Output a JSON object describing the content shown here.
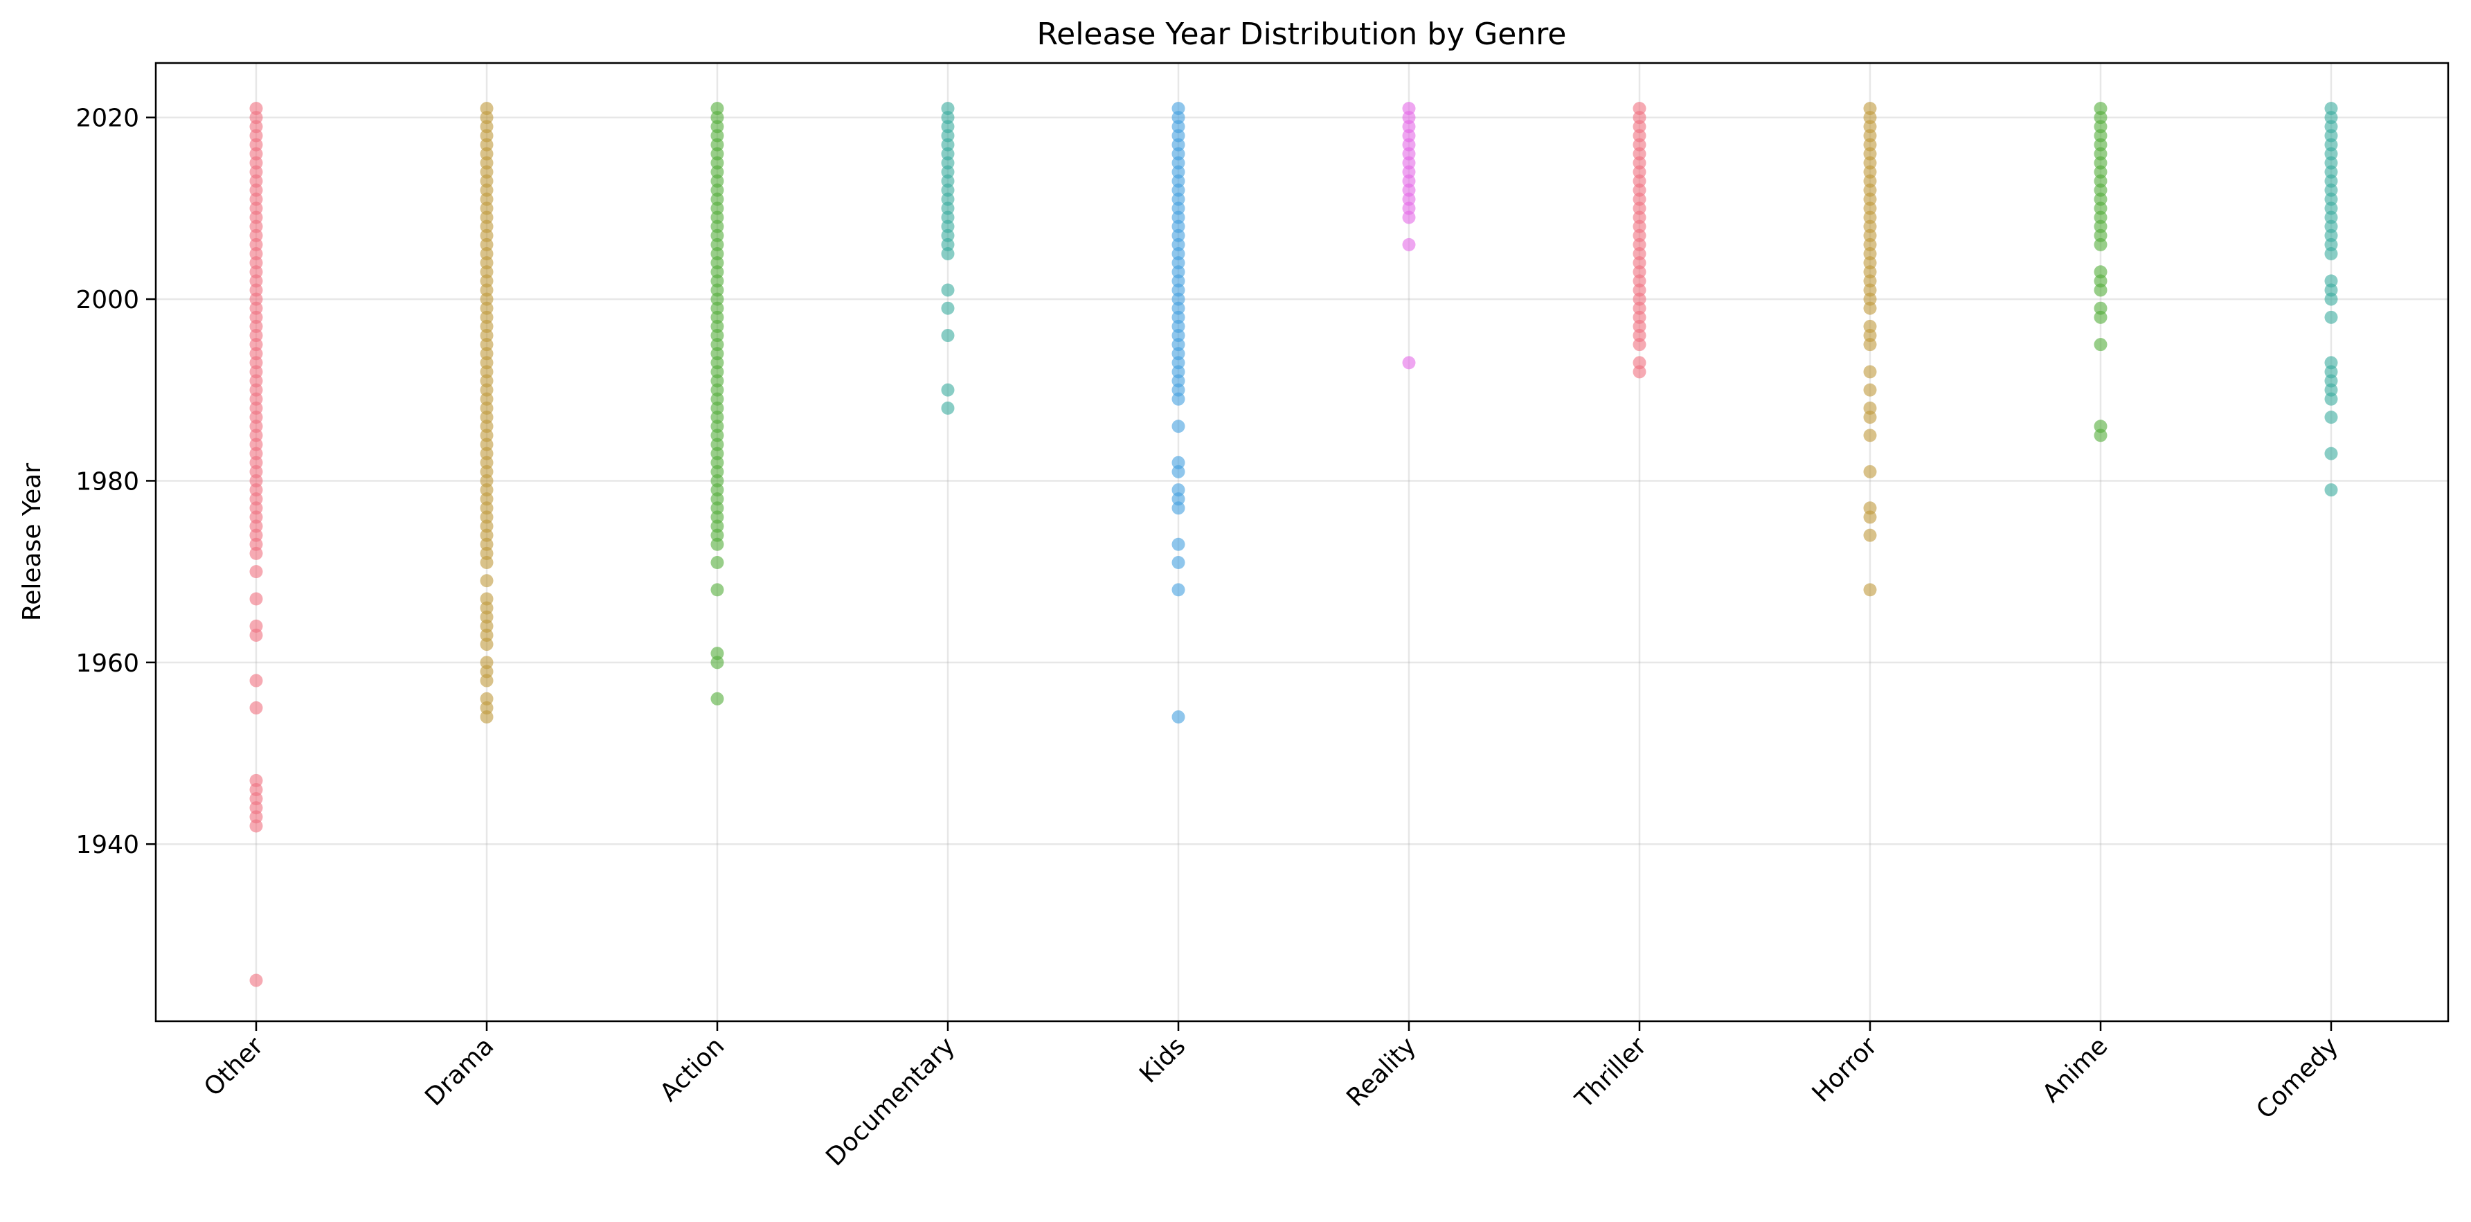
{
  "chart_data": {
    "type": "scatter",
    "title": "Release Year Distribution by Genre",
    "xlabel": "",
    "ylabel": "Release Year",
    "ylim": [
      1920.5,
      2026
    ],
    "yticks": [
      1940,
      1960,
      1980,
      2000,
      2020
    ],
    "grid": true,
    "categories": [
      "Other",
      "Drama",
      "Action",
      "Documentary",
      "Kids",
      "Reality",
      "Thriller",
      "Horror",
      "Anime",
      "Comedy"
    ],
    "series": [
      {
        "category": "Other",
        "color": "#f07180",
        "range": [
          1972,
          2021
        ],
        "years": [
          1925,
          1942,
          1943,
          1944,
          1945,
          1946,
          1947,
          1955,
          1958,
          1963,
          1964,
          1967,
          1970,
          1972,
          1973,
          1974,
          1975,
          1976,
          1977,
          1978,
          1979,
          1980,
          1981,
          1982,
          1983,
          1984,
          1985,
          1986,
          1988,
          1989,
          1990,
          1991,
          1992
        ]
      },
      {
        "category": "Drama",
        "color": "#c09a3c",
        "range": [
          1971,
          2021
        ],
        "years": [
          1954,
          1955,
          1956,
          1958,
          1959,
          1960,
          1962,
          1963,
          1964,
          1965,
          1966,
          1967,
          1969,
          1971
        ]
      },
      {
        "category": "Action",
        "color": "#53ad3b",
        "range": [
          1974,
          2021
        ],
        "years": [
          1956,
          1960,
          1961,
          1968,
          1971,
          1973,
          1975,
          1976,
          1977,
          1978,
          1979,
          1980,
          1981,
          1982,
          1983,
          1984,
          1985,
          1986,
          1987,
          1988,
          1989,
          1990
        ]
      },
      {
        "category": "Documentary",
        "color": "#3aac9f",
        "range": [
          2007,
          2021
        ],
        "years": [
          1988,
          1990,
          1996,
          1999,
          2001,
          2005,
          2006
        ]
      },
      {
        "category": "Kids",
        "color": "#45a0e0",
        "range": [
          1991,
          2021
        ],
        "years": [
          1954,
          1968,
          1971,
          1973,
          1977,
          1978,
          1979,
          1981,
          1982,
          1986,
          1989,
          1990
        ]
      },
      {
        "category": "Reality",
        "color": "#e56be8",
        "range": [
          2010,
          2021
        ],
        "years": [
          1993,
          2006,
          2009
        ]
      },
      {
        "category": "Thriller",
        "color": "#f07180",
        "range": [
          2003,
          2021
        ],
        "years": [
          1992,
          1993,
          1995,
          1996,
          1997,
          1998,
          1999,
          2000,
          2001,
          2002
        ]
      },
      {
        "category": "Horror",
        "color": "#c09a3c",
        "range": [
          2004,
          2021
        ],
        "years": [
          1968,
          1974,
          1976,
          1977,
          1981,
          1985,
          1987,
          1988,
          1990,
          1992,
          1995,
          1996,
          1997,
          1999,
          2000,
          2001,
          2002,
          2003
        ]
      },
      {
        "category": "Anime",
        "color": "#53ad3b",
        "range": [
          2006,
          2021
        ],
        "years": [
          1985,
          1986,
          1995,
          1998,
          1999,
          2001,
          2002,
          2003
        ]
      },
      {
        "category": "Comedy",
        "color": "#3aac9f",
        "range": [
          2005,
          2021
        ],
        "years": [
          1979,
          1983,
          1987,
          1989,
          1990,
          1991,
          1992,
          1993,
          1998,
          2000,
          2001,
          2002
        ]
      }
    ]
  }
}
